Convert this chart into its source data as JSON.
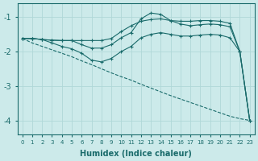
{
  "xlabel": "Humidex (Indice chaleur)",
  "bg_color": "#cceaea",
  "grid_color": "#b0d8d8",
  "line_color": "#1a6b6b",
  "xlim": [
    -0.5,
    23.5
  ],
  "ylim": [
    -4.4,
    -0.6
  ],
  "yticks": [
    -4,
    -3,
    -2,
    -1
  ],
  "xticks": [
    0,
    1,
    2,
    3,
    4,
    5,
    6,
    7,
    8,
    9,
    10,
    11,
    12,
    13,
    14,
    15,
    16,
    17,
    18,
    19,
    20,
    21,
    22,
    23
  ],
  "line1_x": [
    0,
    1,
    2,
    3,
    4,
    5,
    6,
    7,
    8,
    9,
    10,
    11,
    12,
    13,
    14,
    15,
    16,
    17,
    18,
    19,
    20,
    21,
    22,
    23
  ],
  "line1_y": [
    -1.62,
    -1.62,
    -1.65,
    -1.67,
    -1.68,
    -1.68,
    -1.68,
    -1.68,
    -1.68,
    -1.62,
    -1.42,
    -1.25,
    -1.12,
    -1.07,
    -1.05,
    -1.1,
    -1.12,
    -1.12,
    -1.1,
    -1.1,
    -1.12,
    -1.18,
    -2.0,
    -4.0
  ],
  "line2_x": [
    0,
    1,
    2,
    3,
    4,
    5,
    6,
    7,
    8,
    9,
    10,
    11,
    12,
    13,
    14,
    15,
    16,
    17,
    18,
    19,
    20,
    21,
    22,
    23
  ],
  "line2_y": [
    -1.62,
    -1.62,
    -1.65,
    -1.67,
    -1.68,
    -1.68,
    -1.8,
    -1.9,
    -1.9,
    -1.8,
    -1.6,
    -1.45,
    -1.05,
    -0.88,
    -0.92,
    -1.1,
    -1.2,
    -1.25,
    -1.22,
    -1.2,
    -1.22,
    -1.28,
    -2.0,
    -4.0
  ],
  "line3_x": [
    0,
    1,
    2,
    3,
    4,
    5,
    6,
    7,
    8,
    9,
    10,
    11,
    12,
    13,
    14,
    15,
    16,
    17,
    18,
    19,
    20,
    21,
    22,
    23
  ],
  "line3_y": [
    -1.62,
    -1.62,
    -1.65,
    -1.75,
    -1.85,
    -1.92,
    -2.05,
    -2.25,
    -2.3,
    -2.2,
    -2.0,
    -1.85,
    -1.6,
    -1.5,
    -1.45,
    -1.5,
    -1.55,
    -1.55,
    -1.52,
    -1.5,
    -1.52,
    -1.6,
    -2.0,
    -4.0
  ],
  "line4_x": [
    0,
    1,
    2,
    3,
    4,
    5,
    6,
    7,
    8,
    9,
    10,
    11,
    12,
    13,
    14,
    15,
    16,
    17,
    18,
    19,
    20,
    21,
    22,
    23
  ],
  "line4_y": [
    -1.62,
    -1.75,
    -1.85,
    -1.95,
    -2.05,
    -2.15,
    -2.27,
    -2.38,
    -2.5,
    -2.62,
    -2.73,
    -2.83,
    -2.95,
    -3.06,
    -3.17,
    -3.28,
    -3.38,
    -3.48,
    -3.58,
    -3.68,
    -3.78,
    -3.88,
    -3.95,
    -4.0
  ]
}
